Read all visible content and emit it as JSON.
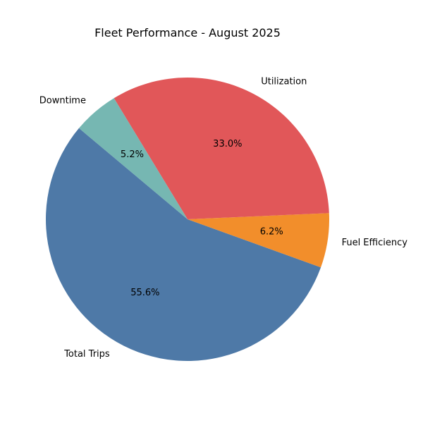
{
  "chart_data": {
    "type": "pie",
    "title": "Fleet Performance - August 2025",
    "slices": [
      {
        "label": "Total Trips",
        "value": 55.6,
        "pct_label": "55.6%",
        "color": "#4e79a7"
      },
      {
        "label": "Fuel Efficiency",
        "value": 6.2,
        "pct_label": "6.2%",
        "color": "#f28e2b"
      },
      {
        "label": "Utilization",
        "value": 33.0,
        "pct_label": "33.0%",
        "color": "#e15759"
      },
      {
        "label": "Downtime",
        "value": 5.2,
        "pct_label": "5.2%",
        "color": "#76b7b2"
      }
    ],
    "start_angle_deg": 140,
    "direction": "counterclockwise"
  }
}
